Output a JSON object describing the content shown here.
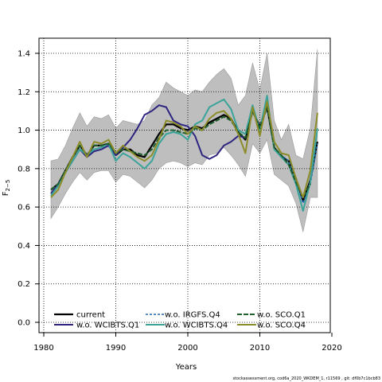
{
  "footer": "stockassessment.org, cod6a_2020_WKDEM_1, r11569 , git: df0b7c1bcb83",
  "chart_data": {
    "type": "line",
    "xlabel": "Years",
    "ylabel_main": "F",
    "ylabel_sub": "2−5",
    "xlim": [
      1980,
      2020
    ],
    "ylim": [
      0.0,
      1.4
    ],
    "xticks": [
      1980,
      1990,
      2000,
      2010,
      2020
    ],
    "yticks": [
      0.0,
      0.2,
      0.4,
      0.6,
      0.8,
      1.0,
      1.2,
      1.4
    ],
    "grid": true,
    "legend_position": "bottom-left",
    "band": {
      "color": "#bebebe",
      "x": [
        1981,
        1982,
        1983,
        1984,
        1985,
        1986,
        1987,
        1988,
        1989,
        1990,
        1991,
        1992,
        1993,
        1994,
        1995,
        1996,
        1997,
        1998,
        1999,
        2000,
        2001,
        2002,
        2003,
        2004,
        2005,
        2006,
        2007,
        2008,
        2009,
        2010,
        2011,
        2012,
        2013,
        2014,
        2015,
        2016,
        2017,
        2018
      ],
      "upper": [
        0.84,
        0.85,
        0.92,
        1.01,
        1.09,
        1.02,
        1.07,
        1.06,
        1.08,
        1.01,
        1.05,
        1.04,
        1.03,
        1.05,
        1.13,
        1.17,
        1.25,
        1.22,
        1.2,
        1.18,
        1.21,
        1.2,
        1.25,
        1.29,
        1.32,
        1.27,
        1.13,
        1.18,
        1.35,
        1.21,
        1.4,
        1.05,
        0.95,
        1.03,
        0.87,
        0.85,
        1.01,
        1.42
      ],
      "lower": [
        0.54,
        0.6,
        0.67,
        0.73,
        0.78,
        0.74,
        0.78,
        0.79,
        0.79,
        0.73,
        0.77,
        0.76,
        0.73,
        0.7,
        0.74,
        0.8,
        0.83,
        0.84,
        0.83,
        0.81,
        0.83,
        0.82,
        0.87,
        0.88,
        0.91,
        0.87,
        0.82,
        0.76,
        0.93,
        0.88,
        0.95,
        0.77,
        0.74,
        0.71,
        0.62,
        0.47,
        0.65,
        0.65
      ]
    },
    "series": [
      {
        "name": "current",
        "color": "#000000",
        "width": 2.2,
        "x": [
          1981,
          1982,
          1983,
          1984,
          1985,
          1986,
          1987,
          1988,
          1989,
          1990,
          1991,
          1992,
          1993,
          1994,
          1995,
          1996,
          1997,
          1998,
          1999,
          2000,
          2001,
          2002,
          2003,
          2004,
          2005,
          2006,
          2007,
          2008,
          2009,
          2010,
          2011,
          2012,
          2013,
          2014,
          2015,
          2016,
          2017,
          2018
        ],
        "y": [
          0.69,
          0.72,
          0.79,
          0.86,
          0.92,
          0.87,
          0.92,
          0.92,
          0.93,
          0.87,
          0.9,
          0.9,
          0.87,
          0.86,
          0.92,
          0.98,
          1.03,
          1.03,
          1.01,
          1.0,
          1.02,
          1.01,
          1.04,
          1.06,
          1.08,
          1.06,
          0.99,
          0.95,
          1.1,
          1.02,
          1.12,
          0.91,
          0.86,
          0.84,
          0.75,
          0.63,
          0.74,
          0.94
        ]
      },
      {
        "name": "w.o. WCIBTS.Q1",
        "color": "#2d2580",
        "width": 2,
        "x": [
          1981,
          1982,
          1983,
          1984,
          1985,
          1986,
          1987,
          1988,
          1989,
          1990,
          1991,
          1992,
          1993,
          1994,
          1995,
          1996,
          1997,
          1998,
          1999,
          2000,
          2001,
          2002,
          2003,
          2004,
          2005,
          2006,
          2007,
          2008
        ],
        "y": [
          0.67,
          0.72,
          0.78,
          0.84,
          0.9,
          0.86,
          0.89,
          0.9,
          0.92,
          0.87,
          0.91,
          0.95,
          1.01,
          1.08,
          1.1,
          1.13,
          1.12,
          1.05,
          1.03,
          1.02,
          0.97,
          0.87,
          0.85,
          0.87,
          0.92,
          0.94,
          0.97,
          0.96
        ]
      },
      {
        "name": "w.o. IRGFS.Q4",
        "color": "#2166ac",
        "width": 1.6,
        "dash": "3,2",
        "x": [
          2012,
          2013,
          2014,
          2015,
          2016,
          2017,
          2018
        ],
        "y": [
          0.9,
          0.87,
          0.84,
          0.74,
          0.62,
          0.72,
          0.93
        ]
      },
      {
        "name": "w.o. WCIBTS.Q4",
        "color": "#3aa39a",
        "width": 2,
        "x": [
          1981,
          1982,
          1983,
          1984,
          1985,
          1986,
          1987,
          1988,
          1989,
          1990,
          1991,
          1992,
          1993,
          1994,
          1995,
          1996,
          1997,
          1998,
          1999,
          2000,
          2001,
          2002,
          2003,
          2004,
          2005,
          2006,
          2007,
          2008,
          2009,
          2010,
          2011,
          2012,
          2013,
          2014,
          2015,
          2016,
          2017,
          2018
        ],
        "y": [
          0.66,
          0.71,
          0.78,
          0.84,
          0.9,
          0.87,
          0.9,
          0.91,
          0.93,
          0.84,
          0.88,
          0.86,
          0.83,
          0.8,
          0.84,
          0.93,
          0.98,
          0.99,
          0.98,
          0.95,
          1.03,
          1.05,
          1.12,
          1.14,
          1.16,
          1.11,
          1.0,
          0.98,
          1.13,
          1.0,
          1.18,
          0.9,
          0.86,
          0.82,
          0.72,
          0.58,
          0.73,
          1.01
        ]
      },
      {
        "name": "w.o. SCO.Q1",
        "color": "#1f5f2e",
        "width": 2,
        "dash": "6,2",
        "x": [
          1981,
          1982,
          1983,
          1984,
          1985,
          1986,
          1987,
          1988,
          1989,
          1990,
          1991,
          1992,
          1993,
          1994,
          1995,
          1996,
          1997,
          1998,
          1999,
          2000,
          2001,
          2002,
          2003,
          2004,
          2005,
          2006,
          2007,
          2008,
          2009,
          2010,
          2011,
          2012,
          2013,
          2014,
          2015,
          2016,
          2017
        ],
        "y": [
          0.69,
          0.72,
          0.79,
          0.86,
          0.92,
          0.87,
          0.92,
          0.92,
          0.93,
          0.88,
          0.9,
          0.89,
          0.88,
          0.87,
          0.9,
          0.96,
          1.0,
          1.0,
          0.99,
          0.98,
          1.01,
          1.0,
          1.03,
          1.05,
          1.07,
          1.05,
          0.99,
          0.96,
          1.1,
          1.01,
          1.12,
          0.91,
          0.87,
          0.82,
          0.73,
          0.65,
          0.72
        ]
      },
      {
        "name": "w.o. SCO.Q4",
        "color": "#8c8c2a",
        "width": 2,
        "x": [
          1981,
          1982,
          1983,
          1984,
          1985,
          1986,
          1987,
          1988,
          1989,
          1990,
          1991,
          1992,
          1993,
          1994,
          1995,
          1996,
          1997,
          1998,
          1999,
          2000,
          2001,
          2002,
          2003,
          2004,
          2005,
          2006,
          2007,
          2008,
          2009,
          2010,
          2011,
          2012,
          2013,
          2014,
          2015,
          2016,
          2017,
          2018
        ],
        "y": [
          0.65,
          0.69,
          0.78,
          0.86,
          0.94,
          0.86,
          0.94,
          0.93,
          0.95,
          0.88,
          0.92,
          0.89,
          0.86,
          0.84,
          0.87,
          0.95,
          1.05,
          1.04,
          1.02,
          0.98,
          1.02,
          1.0,
          1.06,
          1.09,
          1.1,
          1.06,
          0.98,
          0.88,
          1.12,
          0.97,
          1.15,
          0.94,
          0.88,
          0.87,
          0.75,
          0.65,
          0.79,
          1.09
        ]
      }
    ],
    "legend": {
      "col1": [
        "current",
        "w.o. WCIBTS.Q1"
      ],
      "col2": [
        "w.o. IRGFS.Q4",
        "w.o. WCIBTS.Q4"
      ],
      "col3": [
        "w.o. SCO.Q1",
        "w.o. SCO.Q4"
      ]
    }
  }
}
